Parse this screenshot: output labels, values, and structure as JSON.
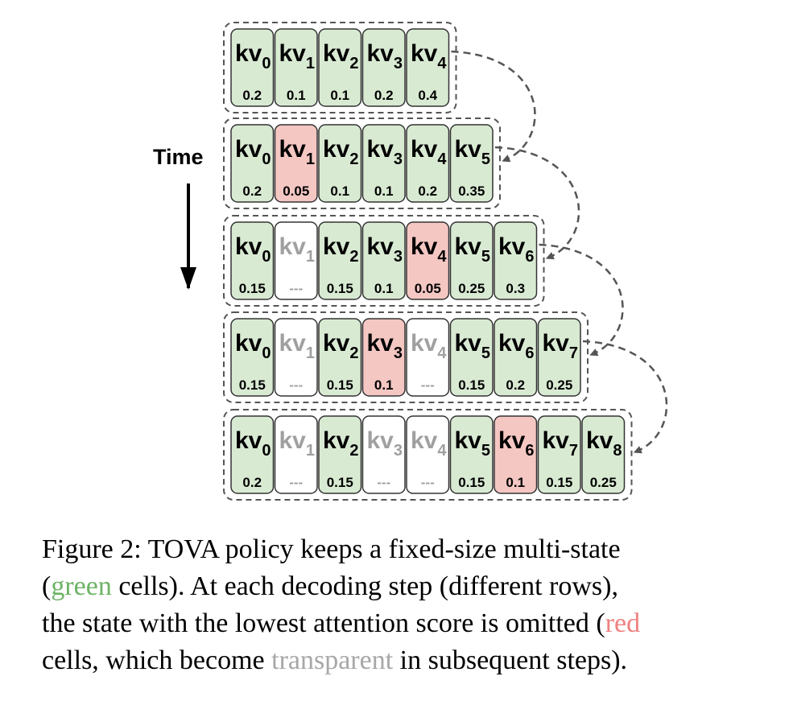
{
  "figure": {
    "time_label": "Time",
    "colors": {
      "kept": "#d9ead3",
      "evicted_now": "#f4c7c3",
      "evicted_before": "#ffffff",
      "border": "#333333",
      "text_active": "#000000",
      "text_faded": "#a0a0a0"
    },
    "rows": [
      {
        "cells": [
          {
            "label": "kv",
            "index": "0",
            "score": "0.2",
            "state": "kept"
          },
          {
            "label": "kv",
            "index": "1",
            "score": "0.1",
            "state": "kept"
          },
          {
            "label": "kv",
            "index": "2",
            "score": "0.1",
            "state": "kept"
          },
          {
            "label": "kv",
            "index": "3",
            "score": "0.2",
            "state": "kept"
          },
          {
            "label": "kv",
            "index": "4",
            "score": "0.4",
            "state": "kept"
          }
        ]
      },
      {
        "cells": [
          {
            "label": "kv",
            "index": "0",
            "score": "0.2",
            "state": "kept"
          },
          {
            "label": "kv",
            "index": "1",
            "score": "0.05",
            "state": "evicted_now"
          },
          {
            "label": "kv",
            "index": "2",
            "score": "0.1",
            "state": "kept"
          },
          {
            "label": "kv",
            "index": "3",
            "score": "0.1",
            "state": "kept"
          },
          {
            "label": "kv",
            "index": "4",
            "score": "0.2",
            "state": "kept"
          },
          {
            "label": "kv",
            "index": "5",
            "score": "0.35",
            "state": "kept"
          }
        ]
      },
      {
        "cells": [
          {
            "label": "kv",
            "index": "0",
            "score": "0.15",
            "state": "kept"
          },
          {
            "label": "kv",
            "index": "1",
            "score": "---",
            "state": "evicted_before"
          },
          {
            "label": "kv",
            "index": "2",
            "score": "0.15",
            "state": "kept"
          },
          {
            "label": "kv",
            "index": "3",
            "score": "0.1",
            "state": "kept"
          },
          {
            "label": "kv",
            "index": "4",
            "score": "0.05",
            "state": "evicted_now"
          },
          {
            "label": "kv",
            "index": "5",
            "score": "0.25",
            "state": "kept"
          },
          {
            "label": "kv",
            "index": "6",
            "score": "0.3",
            "state": "kept"
          }
        ]
      },
      {
        "cells": [
          {
            "label": "kv",
            "index": "0",
            "score": "0.15",
            "state": "kept"
          },
          {
            "label": "kv",
            "index": "1",
            "score": "---",
            "state": "evicted_before"
          },
          {
            "label": "kv",
            "index": "2",
            "score": "0.15",
            "state": "kept"
          },
          {
            "label": "kv",
            "index": "3",
            "score": "0.1",
            "state": "evicted_now"
          },
          {
            "label": "kv",
            "index": "4",
            "score": "---",
            "state": "evicted_before"
          },
          {
            "label": "kv",
            "index": "5",
            "score": "0.15",
            "state": "kept"
          },
          {
            "label": "kv",
            "index": "6",
            "score": "0.2",
            "state": "kept"
          },
          {
            "label": "kv",
            "index": "7",
            "score": "0.25",
            "state": "kept"
          }
        ]
      },
      {
        "cells": [
          {
            "label": "kv",
            "index": "0",
            "score": "0.2",
            "state": "kept"
          },
          {
            "label": "kv",
            "index": "1",
            "score": "---",
            "state": "evicted_before"
          },
          {
            "label": "kv",
            "index": "2",
            "score": "0.15",
            "state": "kept"
          },
          {
            "label": "kv",
            "index": "3",
            "score": "---",
            "state": "evicted_before"
          },
          {
            "label": "kv",
            "index": "4",
            "score": "---",
            "state": "evicted_before"
          },
          {
            "label": "kv",
            "index": "5",
            "score": "0.15",
            "state": "kept"
          },
          {
            "label": "kv",
            "index": "6",
            "score": "0.1",
            "state": "evicted_now"
          },
          {
            "label": "kv",
            "index": "7",
            "score": "0.15",
            "state": "kept"
          },
          {
            "label": "kv",
            "index": "8",
            "score": "0.25",
            "state": "kept"
          }
        ]
      }
    ]
  },
  "caption": {
    "line1": "Figure 2: TOVA policy keeps a fixed-size multi-state",
    "line2_pre": "(",
    "line2_green": "green",
    "line2_post": " cells).  At each decoding step (different rows),",
    "line3_pre": "the state with the lowest attention score is omitted (",
    "line3_red": "red",
    "line4_pre": "cells, which become ",
    "line4_gray": "transparent",
    "line4_post": " in subsequent steps)."
  }
}
